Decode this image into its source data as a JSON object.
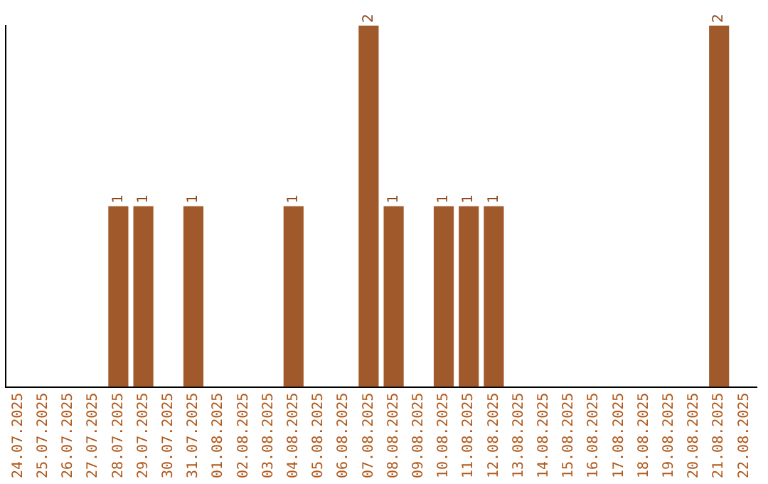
{
  "chart_data": {
    "type": "bar",
    "categories": [
      "24.07.2025",
      "25.07.2025",
      "26.07.2025",
      "27.07.2025",
      "28.07.2025",
      "29.07.2025",
      "30.07.2025",
      "31.07.2025",
      "01.08.2025",
      "02.08.2025",
      "03.08.2025",
      "04.08.2025",
      "05.08.2025",
      "06.08.2025",
      "07.08.2025",
      "08.08.2025",
      "09.08.2025",
      "10.08.2025",
      "11.08.2025",
      "12.08.2025",
      "13.08.2025",
      "14.08.2025",
      "15.08.2025",
      "16.08.2025",
      "17.08.2025",
      "18.08.2025",
      "19.08.2025",
      "20.08.2025",
      "21.08.2025",
      "22.08.2025"
    ],
    "values": [
      0,
      0,
      0,
      0,
      1,
      1,
      0,
      1,
      0,
      0,
      0,
      1,
      0,
      0,
      2,
      1,
      0,
      1,
      1,
      1,
      0,
      0,
      0,
      0,
      0,
      0,
      0,
      0,
      2,
      0
    ],
    "value_labels": [
      null,
      null,
      null,
      null,
      "1",
      "1",
      null,
      "1",
      null,
      null,
      null,
      "1",
      null,
      null,
      "2",
      "1",
      null,
      "1",
      "1",
      "1",
      null,
      null,
      null,
      null,
      null,
      null,
      null,
      null,
      "2",
      null
    ],
    "color": "#a0592a",
    "grid": false,
    "legend": false,
    "tick_labels": "x"
  }
}
